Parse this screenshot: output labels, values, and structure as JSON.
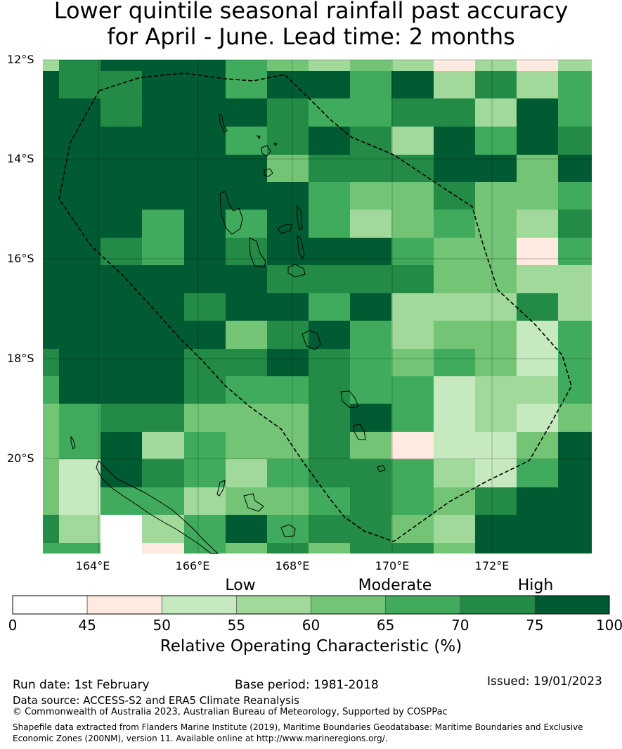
{
  "title_line1": "Lower quintile seasonal rainfall past accuracy",
  "title_line2": "for April - June. Lead time: 2 months",
  "lat_labels": [
    "12°S",
    "14°S",
    "16°S",
    "18°S",
    "20°S"
  ],
  "lon_labels": [
    "164°E",
    "166°E",
    "168°E",
    "170°E",
    "172°E"
  ],
  "colorbar": {
    "category_labels": [
      "Low",
      "Moderate",
      "High"
    ],
    "ticks": [
      "0",
      "45",
      "50",
      "55",
      "60",
      "65",
      "70",
      "75",
      "100"
    ],
    "colors": [
      "#ffffff",
      "#feeae0",
      "#c7e9c0",
      "#a1d99b",
      "#74c476",
      "#41ab5d",
      "#238b45",
      "#005a32"
    ],
    "xlabel": "Relative Operating Characteristic (%)"
  },
  "chart_data": {
    "type": "heatmap",
    "title": "Lower quintile seasonal rainfall past accuracy for April - June. Lead time: 2 months",
    "value_meaning": "bin index into colorbar.ticks (0:<45, 1:45-50, 2:50-55, 3:55-60, 4:60-65, 5:65-70, 6:70-75, 7:75-100)",
    "lon_range": [
      "163°E",
      "174°E"
    ],
    "lat_range": [
      "12°S",
      "21.9°S"
    ],
    "grid": [
      [
        3,
        6,
        7,
        7,
        7,
        5,
        4,
        3,
        4,
        3,
        1,
        3,
        1,
        3
      ],
      [
        7,
        6,
        6,
        7,
        7,
        5,
        7,
        7,
        5,
        7,
        3,
        6,
        3,
        5
      ],
      [
        7,
        7,
        6,
        7,
        7,
        7,
        6,
        5,
        5,
        6,
        6,
        3,
        7,
        5
      ],
      [
        7,
        7,
        7,
        7,
        7,
        5,
        6,
        7,
        6,
        3,
        7,
        5,
        7,
        6
      ],
      [
        7,
        7,
        7,
        7,
        7,
        7,
        4,
        6,
        6,
        6,
        7,
        7,
        4,
        7
      ],
      [
        7,
        7,
        7,
        7,
        7,
        7,
        7,
        5,
        4,
        4,
        6,
        4,
        4,
        5
      ],
      [
        7,
        7,
        7,
        5,
        7,
        5,
        7,
        5,
        3,
        4,
        5,
        4,
        3,
        6
      ],
      [
        7,
        7,
        6,
        5,
        7,
        6,
        7,
        7,
        7,
        5,
        4,
        4,
        1,
        5
      ],
      [
        7,
        7,
        7,
        7,
        7,
        7,
        6,
        6,
        6,
        6,
        4,
        4,
        3,
        3
      ],
      [
        7,
        7,
        7,
        7,
        6,
        7,
        7,
        5,
        7,
        3,
        3,
        3,
        6,
        3
      ],
      [
        7,
        7,
        7,
        7,
        7,
        4,
        6,
        7,
        5,
        3,
        4,
        4,
        2,
        5
      ],
      [
        6,
        7,
        7,
        7,
        6,
        6,
        7,
        6,
        5,
        4,
        5,
        4,
        2,
        5
      ],
      [
        5,
        7,
        7,
        7,
        6,
        5,
        5,
        6,
        5,
        5,
        2,
        3,
        3,
        5
      ],
      [
        4,
        5,
        6,
        6,
        4,
        4,
        4,
        6,
        7,
        5,
        2,
        3,
        2,
        4
      ],
      [
        4,
        5,
        7,
        3,
        5,
        4,
        4,
        6,
        4,
        1,
        2,
        2,
        4,
        7
      ],
      [
        4,
        2,
        7,
        6,
        5,
        3,
        5,
        6,
        6,
        5,
        3,
        2,
        5,
        7
      ],
      [
        4,
        2,
        5,
        5,
        3,
        4,
        4,
        5,
        6,
        5,
        4,
        6,
        7,
        7
      ],
      [
        6,
        3,
        0,
        3,
        5,
        7,
        5,
        6,
        6,
        4,
        3,
        7,
        7,
        7
      ],
      [
        5,
        5,
        0,
        1,
        5,
        4,
        6,
        4,
        6,
        6,
        4,
        7,
        7,
        7
      ]
    ]
  },
  "footer": {
    "run_date": "Run date: 1st February",
    "base_period": "Base period: 1981-2018",
    "issued": "Issued: 19/01/2023",
    "data_source": "Data source: ACCESS-S2 and ERA5 Climate Reanalysis",
    "copyright": "© Commonwealth of Australia 2023, Australian Bureau of Meteorology, Supported by COSPPac",
    "shapefile_line1": "Shapefile data extracted from Flanders Marine Institute (2019), Maritime Boundaries Geodatabase: Maritime Boundaries and Exclusive",
    "shapefile_line2": "Economic Zones (200NM), version 11. Available online at http://www.marineregions.org/."
  }
}
